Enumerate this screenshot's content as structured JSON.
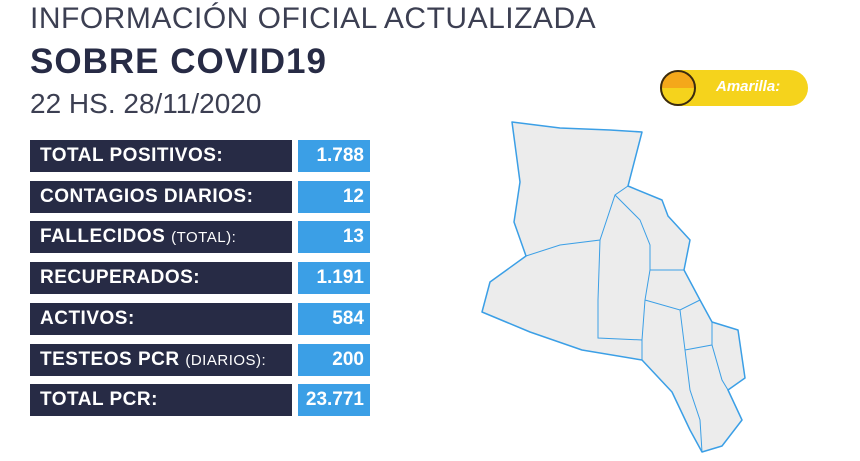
{
  "header": {
    "title": "INFORMACIÓN OFICIAL ACTUALIZADA",
    "subtitle": "SOBRE COVID19",
    "date": "22 HS. 28/11/2020"
  },
  "badge": {
    "label": "Amarilla:"
  },
  "rows": [
    {
      "label": "TOTAL POSITIVOS:",
      "value": "1.788"
    },
    {
      "label": "CONTAGIOS DIARIOS:",
      "value": "12"
    },
    {
      "label": "FALLECIDOS",
      "note": "(TOTAL):",
      "value": "13"
    },
    {
      "label": "RECUPERADOS:",
      "value": "1.191"
    },
    {
      "label": "ACTIVOS:",
      "value": "584"
    },
    {
      "label": "TESTEOS PCR",
      "note": "(DIARIOS):",
      "value": "200"
    },
    {
      "label": "TOTAL PCR:",
      "value": "23.771"
    }
  ]
}
